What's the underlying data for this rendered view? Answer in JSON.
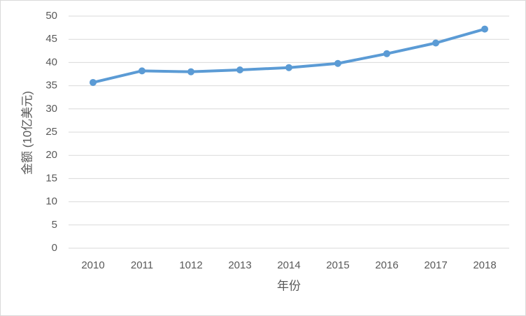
{
  "chart_data": {
    "type": "line",
    "x_label": "年份",
    "y_label": "金额 (10亿美元)",
    "categories": [
      "2010",
      "2011",
      "1012",
      "2013",
      "2014",
      "2015",
      "2016",
      "2017",
      "2018"
    ],
    "series": [
      {
        "color": "#5b9bd5",
        "values": [
          35.7,
          38.2,
          38.0,
          38.4,
          38.9,
          39.8,
          41.9,
          44.2,
          47.2
        ]
      }
    ],
    "ylim": [
      0,
      50
    ],
    "yticks": [
      0,
      5,
      10,
      15,
      20,
      25,
      30,
      35,
      40,
      45,
      50
    ],
    "grid": true
  }
}
